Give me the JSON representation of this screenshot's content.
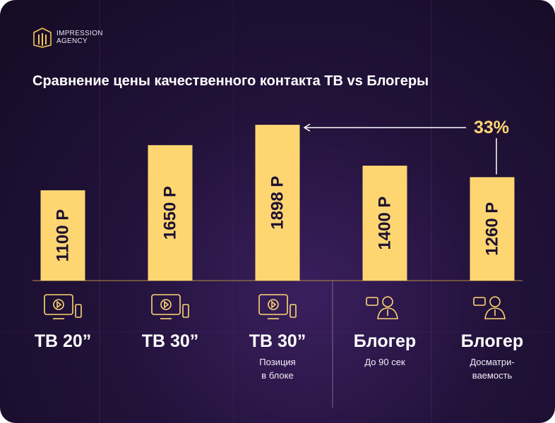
{
  "brand": {
    "line1": "IMPRESSION",
    "line2": "AGENCY"
  },
  "chart_data": {
    "type": "bar",
    "title": "Сравнение цены качественного контакта ТВ vs Блогеры",
    "categories": [
      "ТВ 20”",
      "ТВ 30”",
      "ТВ 30”",
      "Блогер",
      "Блогер"
    ],
    "notes": [
      "",
      "",
      "Позиция в блоке",
      "До 90 сек",
      "Досматри-ваемость"
    ],
    "note_lines": [
      [],
      [],
      [
        "Позиция",
        "в блоке"
      ],
      [
        "До 90 сек"
      ],
      [
        "Досматри-",
        "ваемость"
      ]
    ],
    "icons": [
      "tv-icon",
      "tv-icon",
      "tv-icon",
      "blogger-icon",
      "blogger-icon"
    ],
    "values": [
      1100,
      1650,
      1898,
      1400,
      1260
    ],
    "value_labels": [
      "1100 Р",
      "1650 Р",
      "1898 Р",
      "1400 Р",
      "1260 Р"
    ],
    "ylim": [
      0,
      1898
    ],
    "bar_color": "#fdd672",
    "annotation": {
      "text": "33%",
      "from_index": 4,
      "to_index": 2,
      "color": "#fdd672"
    }
  }
}
